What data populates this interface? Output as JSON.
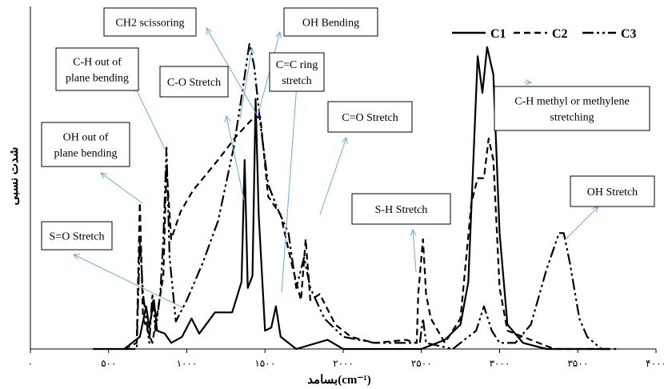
{
  "chart_data": {
    "type": "line",
    "xlabel": "بسامد(cm⁻¹)",
    "ylabel": "شدت نسبی",
    "xlim": [
      0,
      4000
    ],
    "ylim": [
      0,
      1
    ],
    "x_ticks": [
      "۰",
      "۵۰۰",
      "۱۰۰۰",
      "۱۵۰۰",
      "۲۰۰۰",
      "۲۵۰۰",
      "۳۰۰۰",
      "۳۵۰۰",
      "۴۰۰۰"
    ],
    "x_tick_values": [
      0,
      500,
      1000,
      1500,
      2000,
      2500,
      3000,
      3500,
      4000
    ],
    "grid": false,
    "legend_position": "top-right",
    "series": [
      {
        "name": "C1",
        "dash": "solid",
        "points": [
          [
            400,
            0
          ],
          [
            600,
            0
          ],
          [
            700,
            0.04
          ],
          [
            740,
            0.14
          ],
          [
            760,
            0.07
          ],
          [
            790,
            0.16
          ],
          [
            810,
            0.06
          ],
          [
            860,
            0.05
          ],
          [
            900,
            0.02
          ],
          [
            970,
            0.04
          ],
          [
            1030,
            0.1
          ],
          [
            1080,
            0.05
          ],
          [
            1180,
            0.12
          ],
          [
            1290,
            0.12
          ],
          [
            1350,
            0.22
          ],
          [
            1370,
            0.62
          ],
          [
            1390,
            0.2
          ],
          [
            1420,
            0.24
          ],
          [
            1440,
            0.82
          ],
          [
            1460,
            0.44
          ],
          [
            1500,
            0.06
          ],
          [
            1540,
            0.07
          ],
          [
            1570,
            0.14
          ],
          [
            1600,
            0.04
          ],
          [
            1700,
            0
          ],
          [
            1900,
            0.03
          ],
          [
            2000,
            0
          ],
          [
            2200,
            0
          ],
          [
            2500,
            0
          ],
          [
            2650,
            0.03
          ],
          [
            2750,
            0.08
          ],
          [
            2800,
            0.22
          ],
          [
            2860,
            0.96
          ],
          [
            2890,
            0.84
          ],
          [
            2920,
            0.99
          ],
          [
            2960,
            0.9
          ],
          [
            3000,
            0.38
          ],
          [
            3050,
            0.08
          ],
          [
            3150,
            0.02
          ],
          [
            3300,
            0
          ],
          [
            3700,
            0
          ]
        ]
      },
      {
        "name": "C2",
        "dash": "8,5",
        "points": [
          [
            600,
            0
          ],
          [
            680,
            0.02
          ],
          [
            700,
            0.48
          ],
          [
            720,
            0.1
          ],
          [
            780,
            0.02
          ],
          [
            850,
            0.24
          ],
          [
            870,
            0.6
          ],
          [
            900,
            0.36
          ],
          [
            960,
            0.45
          ],
          [
            1040,
            0.52
          ],
          [
            1200,
            0.62
          ],
          [
            1320,
            0.7
          ],
          [
            1430,
            0.76
          ],
          [
            1470,
            0.76
          ],
          [
            1520,
            0.5
          ],
          [
            1600,
            0.44
          ],
          [
            1670,
            0.28
          ],
          [
            1730,
            0.16
          ],
          [
            1760,
            0.36
          ],
          [
            1790,
            0.16
          ],
          [
            1850,
            0.18
          ],
          [
            1950,
            0.08
          ],
          [
            2050,
            0.04
          ],
          [
            2200,
            0.02
          ],
          [
            2400,
            0.03
          ],
          [
            2470,
            0.02
          ],
          [
            2480,
            0.18
          ],
          [
            2510,
            0.36
          ],
          [
            2530,
            0.18
          ],
          [
            2560,
            0.1
          ],
          [
            2650,
            0.02
          ],
          [
            2750,
            0.1
          ],
          [
            2820,
            0.48
          ],
          [
            2860,
            0.56
          ],
          [
            2900,
            0.56
          ],
          [
            2930,
            0.69
          ],
          [
            2960,
            0.62
          ],
          [
            3000,
            0.2
          ],
          [
            3050,
            0.06
          ],
          [
            3150,
            0.04
          ],
          [
            3350,
            0
          ],
          [
            3700,
            0
          ]
        ]
      },
      {
        "name": "C3",
        "dash": "14,4,3,4,3,4",
        "points": [
          [
            600,
            0
          ],
          [
            680,
            0
          ],
          [
            700,
            0.36
          ],
          [
            720,
            0.18
          ],
          [
            760,
            0.02
          ],
          [
            780,
            0.18
          ],
          [
            800,
            0.06
          ],
          [
            830,
            0.18
          ],
          [
            850,
            0.36
          ],
          [
            870,
            0.66
          ],
          [
            890,
            0.3
          ],
          [
            930,
            0.09
          ],
          [
            1000,
            0.16
          ],
          [
            1100,
            0.28
          ],
          [
            1200,
            0.42
          ],
          [
            1300,
            0.66
          ],
          [
            1360,
            0.86
          ],
          [
            1400,
            1.0
          ],
          [
            1430,
            0.93
          ],
          [
            1470,
            0.74
          ],
          [
            1520,
            0.54
          ],
          [
            1580,
            0.46
          ],
          [
            1650,
            0.38
          ],
          [
            1700,
            0.2
          ],
          [
            1750,
            0.3
          ],
          [
            1790,
            0.2
          ],
          [
            1880,
            0.1
          ],
          [
            2000,
            0.04
          ],
          [
            2200,
            0.02
          ],
          [
            2400,
            0.02
          ],
          [
            2490,
            0.02
          ],
          [
            2510,
            0.1
          ],
          [
            2530,
            0.02
          ],
          [
            2700,
            0
          ],
          [
            2850,
            0.06
          ],
          [
            2900,
            0.14
          ],
          [
            2950,
            0.06
          ],
          [
            3000,
            0.02
          ],
          [
            3100,
            0.02
          ],
          [
            3200,
            0.08
          ],
          [
            3300,
            0.26
          ],
          [
            3380,
            0.38
          ],
          [
            3410,
            0.38
          ],
          [
            3450,
            0.28
          ],
          [
            3510,
            0.1
          ],
          [
            3560,
            0.04
          ],
          [
            3650,
            0
          ],
          [
            3750,
            0
          ]
        ]
      }
    ],
    "annotations": [
      {
        "id": "ch2",
        "text": [
          "CH2 scissoring"
        ]
      },
      {
        "id": "ohbend",
        "text": [
          "OH Bending"
        ]
      },
      {
        "id": "choop",
        "text": [
          "C-H out of",
          "plane bending"
        ]
      },
      {
        "id": "co",
        "text": [
          "C-O Stretch"
        ]
      },
      {
        "id": "ccring",
        "text": [
          "C=C ring",
          "stretch"
        ]
      },
      {
        "id": "cdo",
        "text": [
          "C=O Stretch"
        ]
      },
      {
        "id": "ohoop",
        "text": [
          "OH out of",
          "plane bending"
        ]
      },
      {
        "id": "so",
        "text": [
          "S=O Stretch"
        ]
      },
      {
        "id": "sh",
        "text": [
          "S-H Stretch"
        ]
      },
      {
        "id": "chmethyl",
        "text": [
          "C-H methyl or methylene",
          "stretching"
        ]
      },
      {
        "id": "ohstretch",
        "text": [
          "OH Stretch"
        ]
      }
    ]
  }
}
